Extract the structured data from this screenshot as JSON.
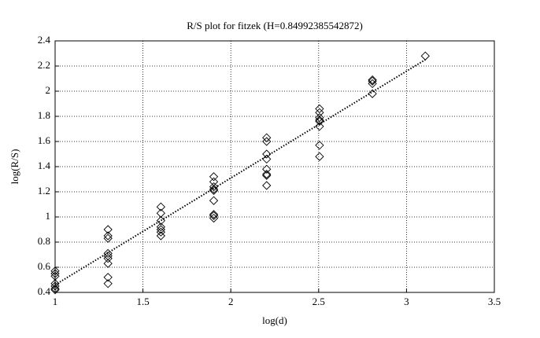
{
  "chart_data": {
    "type": "scatter",
    "title": "R/S plot for fitzek (H=0.84992385542872)",
    "x_label": "log(d)",
    "y_label": "log(R/S)",
    "xlim": [
      1,
      3.5
    ],
    "xticks": [
      1,
      1.5,
      2,
      2.5,
      3,
      3.5
    ],
    "ylim": [
      0.4,
      2.4
    ],
    "yticks": [
      0.4,
      0.6,
      0.8,
      1,
      1.2,
      1.4,
      1.6,
      1.8,
      2,
      2.2,
      2.4
    ],
    "grid": true,
    "series": [
      {
        "color": "#000000",
        "marker": "diamond",
        "x": [
          1,
          1,
          1,
          1,
          1,
          1,
          1,
          1.301,
          1.301,
          1.301,
          1.301,
          1.301,
          1.301,
          1.301,
          1.301,
          1.301,
          1.602,
          1.602,
          1.602,
          1.602,
          1.602,
          1.602,
          1.602,
          1.903,
          1.903,
          1.903,
          1.903,
          1.903,
          1.903,
          1.903,
          1.903,
          1.903,
          2.204,
          2.204,
          2.204,
          2.204,
          2.204,
          2.204,
          2.204,
          2.204,
          2.505,
          2.505,
          2.505,
          2.505,
          2.505,
          2.505,
          2.505,
          2.505,
          2.806,
          2.806,
          2.806,
          2.806,
          3.107
        ],
        "values": [
          0.57,
          0.55,
          0.53,
          0.47,
          0.45,
          0.43,
          0.42,
          0.9,
          0.85,
          0.83,
          0.71,
          0.69,
          0.67,
          0.63,
          0.52,
          0.47,
          1.08,
          1.03,
          0.97,
          0.92,
          0.9,
          0.88,
          0.85,
          1.32,
          1.28,
          1.24,
          1.22,
          1.21,
          1.13,
          1.02,
          1.01,
          0.99,
          1.63,
          1.6,
          1.5,
          1.46,
          1.38,
          1.34,
          1.33,
          1.25,
          1.86,
          1.83,
          1.79,
          1.77,
          1.76,
          1.72,
          1.57,
          1.48,
          2.09,
          2.08,
          2.06,
          1.98,
          2.28
        ]
      },
      {
        "color": "#000000",
        "line_style": "dotted",
        "x": [
          1,
          3.107
        ],
        "values": [
          0.46,
          2.25
        ]
      }
    ]
  }
}
